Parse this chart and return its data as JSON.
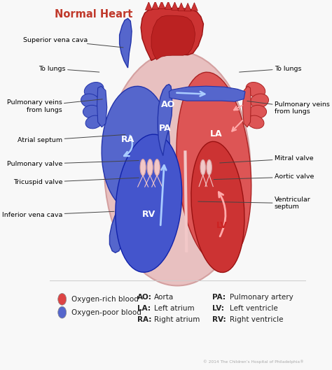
{
  "title": "Normal Heart",
  "title_color": "#c0392b",
  "bg_color": "#f8f8f8",
  "red_fill": "#cc3333",
  "red_mid": "#dd5555",
  "red_light": "#e8a0a0",
  "red_pale": "#f2c8c8",
  "blue_fill": "#4455cc",
  "blue_mid": "#5566cc",
  "blue_light": "#7788dd",
  "blue_pale": "#aabbee",
  "pink_outer": "#e8c0c0",
  "pink_wall": "#d4a0a0",
  "legend_items": [
    {
      "label": "Oxygen-rich blood",
      "color": "#dd4444"
    },
    {
      "label": "Oxygen-poor blood",
      "color": "#5566cc"
    }
  ],
  "abbreviations_col1": [
    [
      "AO",
      "Aorta"
    ],
    [
      "LA",
      "Left atrium"
    ],
    [
      "RA",
      "Right atrium"
    ]
  ],
  "abbreviations_col2": [
    [
      "PA",
      "Pulmonary artery"
    ],
    [
      "LV",
      "Left ventricle"
    ],
    [
      "RV",
      "Right ventricle"
    ]
  ],
  "copyright": "© 2014 The Children’s Hospital of Philadelphia®"
}
